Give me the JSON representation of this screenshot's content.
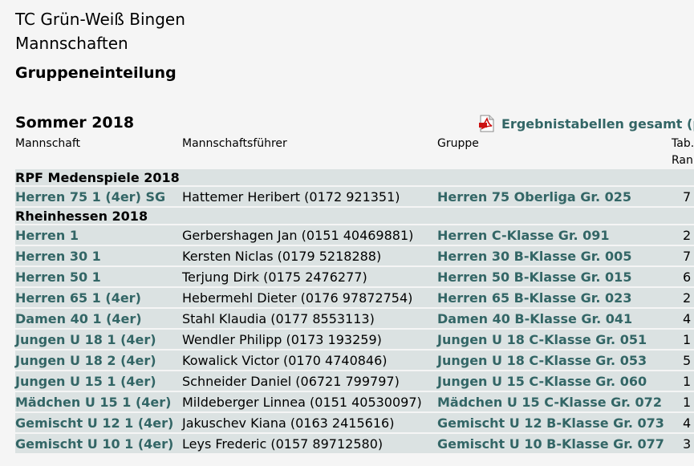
{
  "header": {
    "club": "TC Grün-Weiß Bingen",
    "subtitle": "Mannschaften",
    "section": "Gruppeneinteilung"
  },
  "season": {
    "title": "Sommer 2018",
    "pdf_link": "Ergebnistabellen gesamt (p"
  },
  "columns": {
    "team": "Mannschaft",
    "captain": "Mannschaftsführer",
    "group": "Gruppe",
    "rank_line1": "Tab.",
    "rank_line2": "Ran"
  },
  "sections": [
    {
      "title": "RPF Medenspiele 2018",
      "rows": [
        {
          "team": "Herren 75 1 (4er) SG",
          "captain": "Hattemer Heribert (0172 921351)",
          "group": "Herren 75 Oberliga Gr. 025",
          "rank": "7"
        }
      ]
    },
    {
      "title": "Rheinhessen 2018",
      "rows": [
        {
          "team": "Herren 1",
          "captain": "Gerbershagen Jan (0151 40469881)",
          "group": "Herren C-Klasse Gr. 091",
          "rank": "2"
        },
        {
          "team": "Herren 30 1",
          "captain": "Kersten Niclas (0179 5218288)",
          "group": "Herren 30 B-Klasse Gr. 005",
          "rank": "7"
        },
        {
          "team": "Herren 50 1",
          "captain": "Terjung Dirk (0175 2476277)",
          "group": "Herren 50 B-Klasse Gr. 015",
          "rank": "6"
        },
        {
          "team": "Herren 65 1 (4er)",
          "captain": "Hebermehl Dieter (0176 97872754)",
          "group": "Herren 65 B-Klasse Gr. 023",
          "rank": "2"
        },
        {
          "team": "Damen 40 1 (4er)",
          "captain": "Stahl Klaudia (0177 8553113)",
          "group": "Damen 40 B-Klasse Gr. 041",
          "rank": "4"
        },
        {
          "team": "Jungen U 18 1 (4er)",
          "captain": "Wendler Philipp (0173 193259)",
          "group": "Jungen U 18 C-Klasse Gr. 051",
          "rank": "1"
        },
        {
          "team": "Jungen U 18 2 (4er)",
          "captain": "Kowalick Victor (0170 4740846)",
          "group": "Jungen U 18 C-Klasse Gr. 053",
          "rank": "5"
        },
        {
          "team": "Jungen U 15 1 (4er)",
          "captain": "Schneider Daniel (06721 799797)",
          "group": "Jungen U 15 C-Klasse Gr. 060",
          "rank": "1"
        },
        {
          "team": "Mädchen U 15 1 (4er)",
          "captain": "Mildeberger Linnea (0151 40530097)",
          "group": "Mädchen U 15 C-Klasse Gr. 072",
          "rank": "1"
        },
        {
          "team": "Gemischt U 12 1 (4er)",
          "captain": "Jakuschev Kiana (0163 2415616)",
          "group": "Gemischt U 12 B-Klasse Gr. 073",
          "rank": "4"
        },
        {
          "team": "Gemischt U 10 1 (4er)",
          "captain": "Leys Frederic (0157 89712580)",
          "group": "Gemischt U 10 B-Klasse Gr. 077",
          "rank": "3"
        }
      ]
    }
  ],
  "icons": {
    "pdf": "pdf-icon"
  },
  "colors": {
    "link": "#336666",
    "row_bg": "#dbe2e2",
    "page_bg": "#f5f5f5"
  }
}
